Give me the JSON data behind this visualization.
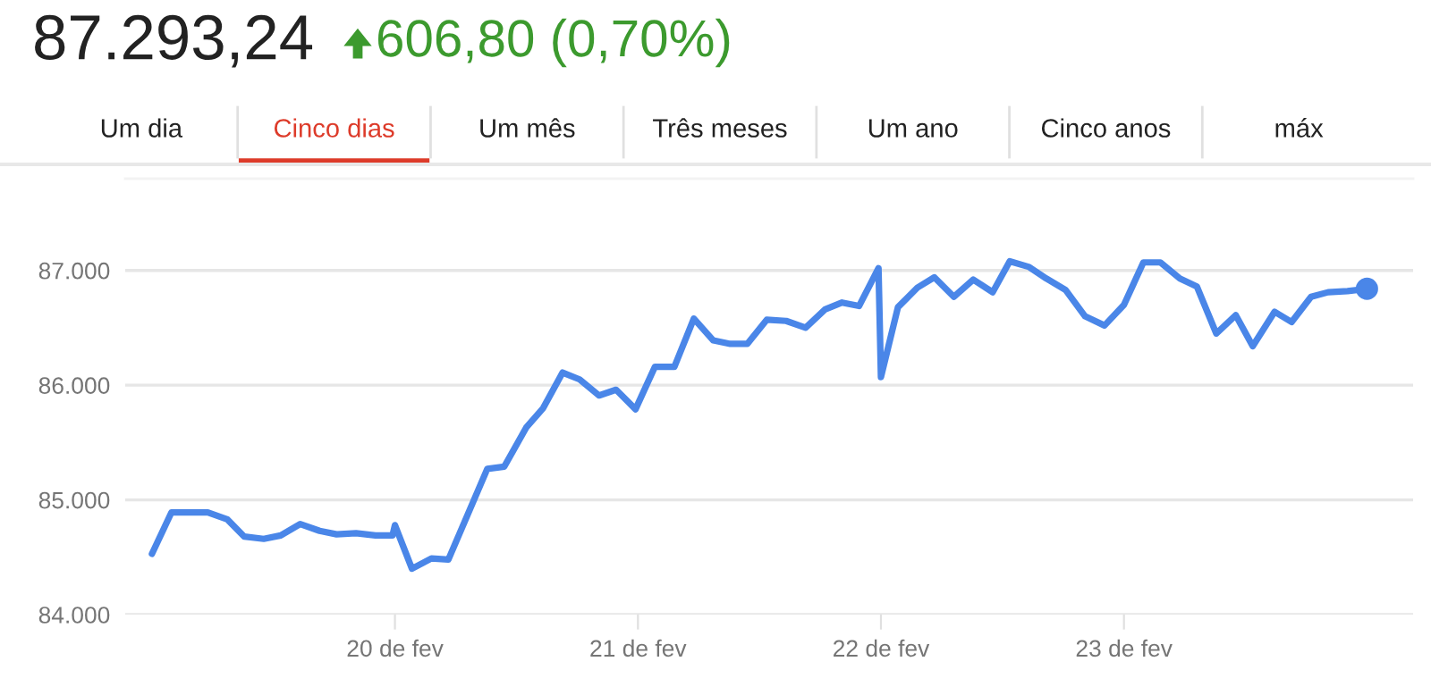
{
  "chart_data": {
    "type": "line",
    "title": "87.293,24",
    "subtitle": "606,80 (0,70%)",
    "annotations": [
      "Um dia",
      "Cinco dias",
      "Um mês",
      "Três meses",
      "Um ano",
      "Cinco anos",
      "máx"
    ],
    "x": [
      19.0,
      19.08,
      19.23,
      19.31,
      19.38,
      19.46,
      19.53,
      19.61,
      19.69,
      19.76,
      19.84,
      19.92,
      19.99,
      20.0,
      20.07,
      20.15,
      20.22,
      20.38,
      20.45,
      20.54,
      20.61,
      20.69,
      20.76,
      20.84,
      20.91,
      20.99,
      21.07,
      21.15,
      21.23,
      21.31,
      21.38,
      21.45,
      21.53,
      21.61,
      21.69,
      21.77,
      21.84,
      21.91,
      21.99,
      22.0,
      22.07,
      22.15,
      22.22,
      22.3,
      22.38,
      22.46,
      22.53,
      22.61,
      22.68,
      22.76,
      22.84,
      22.92,
      23.0,
      23.08,
      23.15,
      23.23,
      23.3,
      23.38,
      23.46,
      23.53,
      23.62,
      23.69,
      23.77,
      23.84,
      23.92,
      24.0
    ],
    "series": [
      {
        "color": "#4a86e8",
        "values": [
          84530,
          84890,
          84890,
          84830,
          84680,
          84660,
          84690,
          84790,
          84730,
          84700,
          84710,
          84690,
          84690,
          84780,
          84400,
          84490,
          84480,
          85270,
          85290,
          85630,
          85800,
          86110,
          86050,
          85910,
          85960,
          85790,
          86160,
          86160,
          86580,
          86390,
          86360,
          86360,
          86570,
          86560,
          86500,
          86660,
          86720,
          86690,
          87020,
          86070,
          86680,
          86850,
          86940,
          86770,
          86920,
          86810,
          87080,
          87030,
          86930,
          86830,
          86600,
          86520,
          86700,
          87070,
          87070,
          86930,
          86860,
          86450,
          86610,
          86340,
          86640,
          86550,
          86770,
          86810,
          86820,
          86840
        ]
      }
    ],
    "xlim": [
      18.89,
      24.19
    ],
    "xticks": [
      {
        "value": 20,
        "label": "20 de fev"
      },
      {
        "value": 21,
        "label": "21 de fev"
      },
      {
        "value": 22,
        "label": "22 de fev"
      },
      {
        "value": 23,
        "label": "23 de fev"
      }
    ],
    "ylim": [
      84000,
      87800
    ],
    "yticks": [
      {
        "value": 84000,
        "label": "84.000"
      },
      {
        "value": 85000,
        "label": "85.000"
      },
      {
        "value": 86000,
        "label": "86.000"
      },
      {
        "value": 87000,
        "label": "87.000"
      }
    ],
    "grid": "y",
    "line_style": "solid"
  }
}
